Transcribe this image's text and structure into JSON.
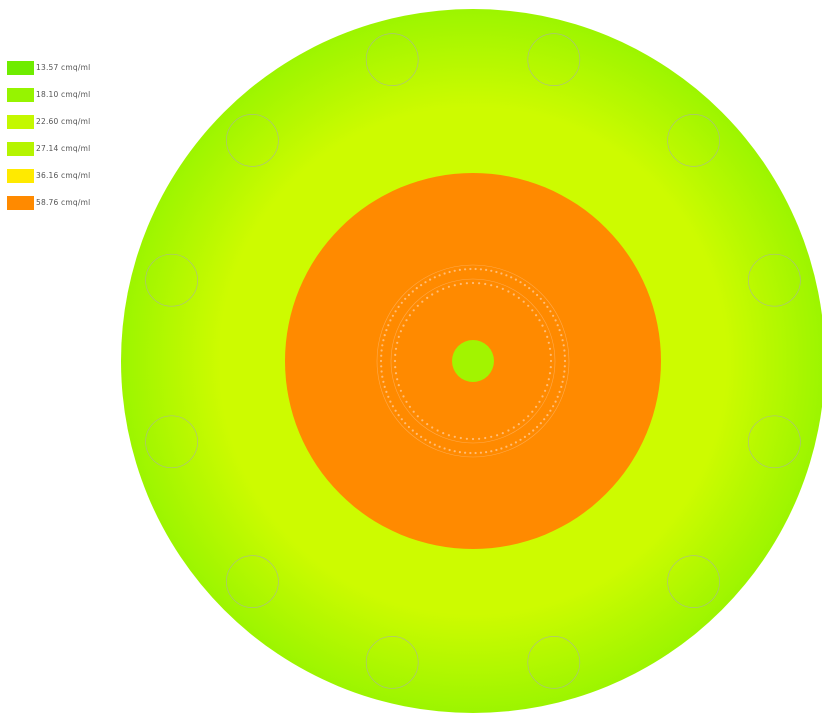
{
  "legend": {
    "items": [
      {
        "label": "13.57 cmq/ml",
        "color": "#6fec00"
      },
      {
        "label": "18.10 cmq/ml",
        "color": "#96f400"
      },
      {
        "label": "22.60 cmq/ml",
        "color": "#c4f800"
      },
      {
        "label": "27.14 cmq/ml",
        "color": "#b5f400"
      },
      {
        "label": "36.16 cmq/ml",
        "color": "#ffea00"
      },
      {
        "label": "58.76 cmq/ml",
        "color": "#ff8a00"
      }
    ]
  },
  "colors": {
    "outer_edge": "#9cf500",
    "outer_mid": "#cdfb00",
    "inner_disc": "#ff8a00",
    "center_hole": "#a2f400",
    "hole_outline": "#aab0a0",
    "ring_dots": "#ffc48a"
  },
  "diagram": {
    "peripheral_hole_count": 12,
    "ring_dot_counts": [
      80,
      110
    ]
  }
}
